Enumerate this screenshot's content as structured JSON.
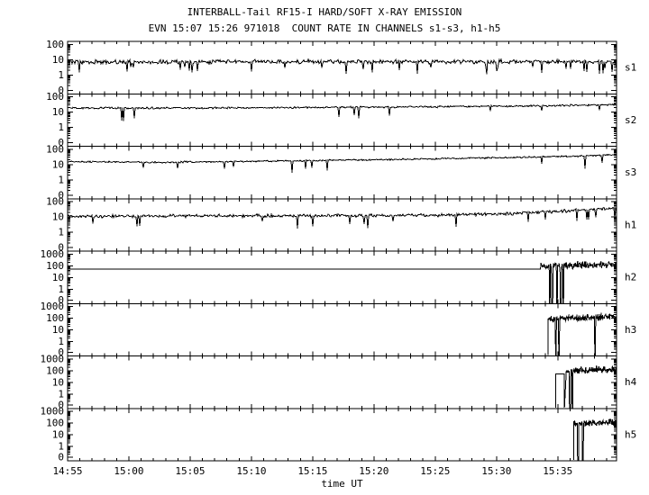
{
  "colors": {
    "foreground": "#000000",
    "background": "#ffffff"
  },
  "chart_data": {
    "type": "line",
    "title": "INTERBALL-Tail RF15-I HARD/SOFT X-RAY EMISSION",
    "subtitle": "EVN 15:07 15:26 971018  COUNT RATE IN CHANNELS s1-s3, h1-h5",
    "xlabel": "time UT",
    "grid": false,
    "legend": "none",
    "x_axis": {
      "tick_labels": [
        "14:55",
        "15:00",
        "15:05",
        "15:10",
        "15:15",
        "15:20",
        "15:25",
        "15:30",
        "15:35"
      ],
      "major_tick_minutes": [
        0,
        5,
        10,
        15,
        20,
        25,
        30,
        35,
        40
      ],
      "minor_step_minutes": 1,
      "range_minutes": [
        0,
        44.8
      ],
      "start_time": "14:55"
    },
    "y_axis_note": "pseudo-log count rate, zero baseline tick at panel bottom",
    "panels": [
      {
        "id": "s1",
        "label": "s1",
        "kind": "s",
        "y_tick_labels": [
          "100",
          "10",
          "1",
          "0"
        ],
        "trace": [
          {
            "kind": "noise",
            "t": [
              0,
              44.8
            ],
            "levels": [
              [
                0,
                7
              ],
              [
                44.8,
                7.5
              ]
            ],
            "sigma": 0.16,
            "spikes": 0.05
          }
        ]
      },
      {
        "id": "s2",
        "label": "s2",
        "kind": "s",
        "y_tick_labels": [
          "100",
          "10",
          "1",
          "0"
        ],
        "trace": [
          {
            "kind": "noise",
            "t": [
              0,
              44.8
            ],
            "levels": [
              [
                0,
                19
              ],
              [
                8,
                18
              ],
              [
                20,
                20
              ],
              [
                30,
                22
              ],
              [
                40,
                26
              ],
              [
                44.8,
                30
              ]
            ],
            "sigma": 0.07,
            "spikes": 0.02
          }
        ]
      },
      {
        "id": "s3",
        "label": "s3",
        "kind": "s",
        "y_tick_labels": [
          "100",
          "10",
          "1",
          "0"
        ],
        "trace": [
          {
            "kind": "noise",
            "t": [
              0,
              44.8
            ],
            "levels": [
              [
                0,
                15
              ],
              [
                8,
                14
              ],
              [
                18,
                17
              ],
              [
                28,
                22
              ],
              [
                36,
                28
              ],
              [
                42,
                36
              ],
              [
                44.8,
                43
              ]
            ],
            "sigma": 0.06,
            "spikes": 0.02
          }
        ]
      },
      {
        "id": "h1",
        "label": "h1",
        "kind": "s",
        "y_tick_labels": [
          "100",
          "10",
          "1",
          "0"
        ],
        "trace": [
          {
            "kind": "noise",
            "t": [
              0,
              44.8
            ],
            "levels": [
              [
                0,
                11
              ],
              [
                18,
                12
              ],
              [
                30,
                13
              ],
              [
                36,
                16
              ],
              [
                41,
                25
              ],
              [
                43.5,
                33
              ],
              [
                44.8,
                40
              ]
            ],
            "sigma": 0.12,
            "spikes": 0.03
          }
        ]
      },
      {
        "id": "h2",
        "label": "h2",
        "kind": "h",
        "y_tick_labels": [
          "1000",
          "100",
          "10",
          "1",
          "0"
        ],
        "trace": [
          {
            "kind": "flat",
            "t": [
              0,
              38.6
            ],
            "value": 50
          },
          {
            "kind": "noise",
            "t": [
              38.6,
              40.7
            ],
            "levels": [
              [
                38.6,
                75
              ],
              [
                40.7,
                95
              ]
            ],
            "sigma": 0.38,
            "density": 2,
            "dropouts": [
              39.35,
              39.55,
              39.95,
              40.25,
              40.45
            ]
          },
          {
            "kind": "noise",
            "t": [
              40.7,
              44.8
            ],
            "levels": [
              [
                40.7,
                100
              ],
              [
                44.8,
                140
              ]
            ],
            "sigma": 0.38,
            "density": 2
          }
        ]
      },
      {
        "id": "h3",
        "label": "h3",
        "kind": "h",
        "y_tick_labels": [
          "1000",
          "100",
          "10",
          "1",
          "0"
        ],
        "trace": [
          {
            "kind": "noise",
            "t": [
              39.2,
              44.8
            ],
            "levels": [
              [
                39.2,
                85
              ],
              [
                41.5,
                115
              ],
              [
                44.8,
                125
              ]
            ],
            "sigma": 0.38,
            "density": 2,
            "dropouts": [
              39.85,
              40.1,
              43.05
            ],
            "rise_from_zero": true
          }
        ]
      },
      {
        "id": "h4",
        "label": "h4",
        "kind": "h",
        "y_tick_labels": [
          "1000",
          "100",
          "10",
          "1",
          "0"
        ],
        "trace": [
          {
            "kind": "pulse",
            "t": [
              39.85,
              40.55
            ],
            "value": 50
          },
          {
            "kind": "noise",
            "t": [
              40.7,
              44.8
            ],
            "levels": [
              [
                40.7,
                105
              ],
              [
                44.8,
                135
              ]
            ],
            "sigma": 0.36,
            "density": 2,
            "dropouts": [
              41.0,
              41.2
            ],
            "rise_from_zero": true
          }
        ]
      },
      {
        "id": "h5",
        "label": "h5",
        "kind": "h",
        "y_tick_labels": [
          "1000",
          "100",
          "10",
          "1",
          "0"
        ],
        "trace": [
          {
            "kind": "noise",
            "t": [
              41.3,
              44.8
            ],
            "levels": [
              [
                41.3,
                95
              ],
              [
                44.8,
                115
              ]
            ],
            "sigma": 0.34,
            "density": 3,
            "dropouts": [
              41.65,
              42.05
            ],
            "rise_from_zero": true
          }
        ]
      }
    ]
  }
}
